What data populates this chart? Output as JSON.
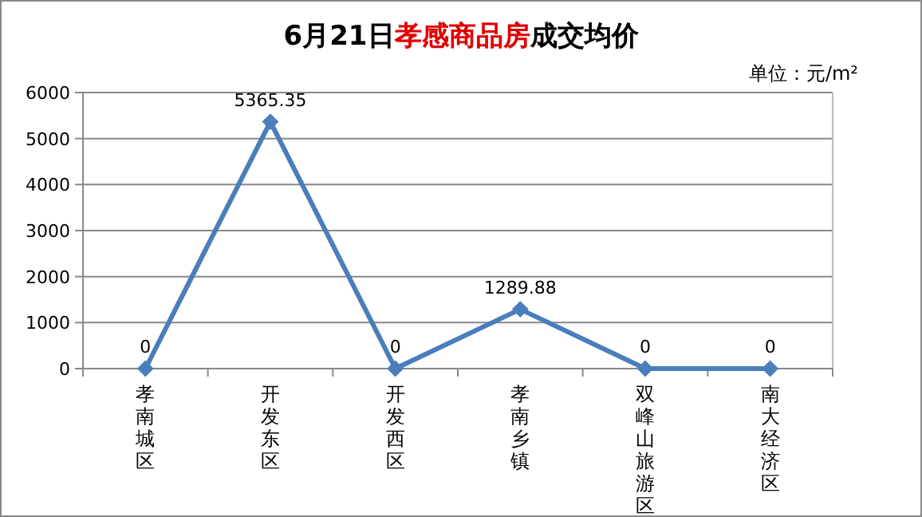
{
  "chart_data": {
    "type": "line",
    "title": "6月21日孝感商品房成交均价",
    "subtitle": "单位：元/m²",
    "categories": [
      "孝南城区",
      "开发东区",
      "开发西区",
      "孝南乡镇",
      "双峰山旅游区",
      "南大经济区"
    ],
    "series": [
      {
        "color": "#4a7ebb",
        "values": [
          0,
          5365.35,
          0,
          1289.88,
          0,
          0
        ]
      }
    ],
    "ylim": [
      0,
      6000
    ],
    "yticks": [
      0,
      1000,
      2000,
      3000,
      4000,
      5000,
      6000
    ],
    "grid": "y",
    "marker": "diamond",
    "data_labels": true
  }
}
